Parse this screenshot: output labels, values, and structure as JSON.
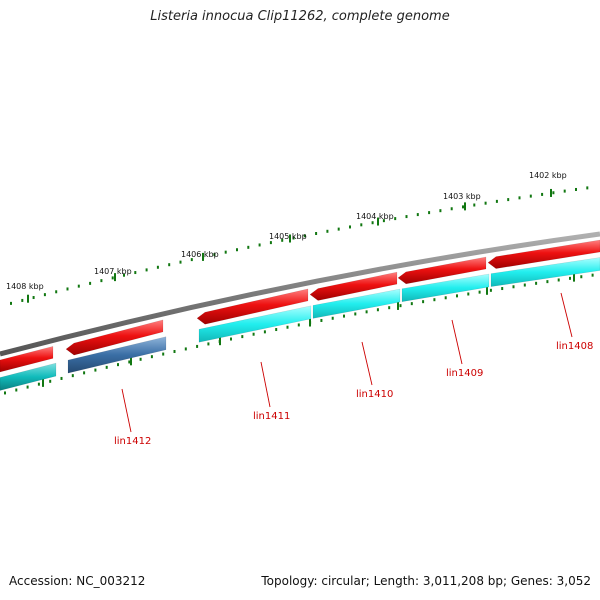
{
  "title": "Listeria innocua Clip11262, complete genome",
  "footer": {
    "accession": "Accession: NC_003212",
    "stats": "Topology: circular; Length: 3,011,208 bp; Genes: 3,052"
  },
  "tick_labels": [
    "1408 kbp",
    "1407 kbp",
    "1406 kbp",
    "1405 kbp",
    "1404 kbp",
    "1403 kbp",
    "1402 kbp"
  ],
  "gene_labels": [
    "lin1412",
    "lin1411",
    "lin1410",
    "lin1409",
    "lin1408"
  ],
  "colors": {
    "backbone": "#7a7a7a",
    "feature_red": "#ee1111",
    "cds_cyan": "#22eeee",
    "cds_teal": "#11bbbb",
    "cds_blue": "#3a6ea5",
    "tick_green": "#117711",
    "label_red": "#cc0000"
  }
}
